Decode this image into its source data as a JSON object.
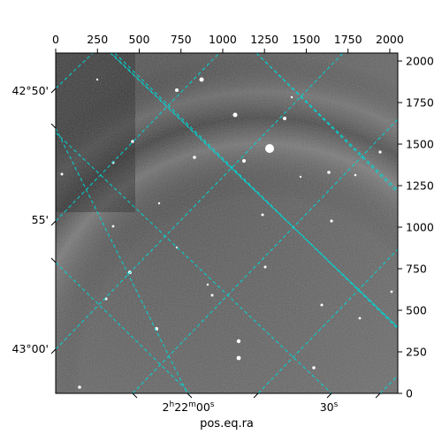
{
  "image": {
    "description_label": "astronomical image with celestial coordinate grid"
  },
  "axes": {
    "top_ticks": [
      "0",
      "250",
      "500",
      "750",
      "1000",
      "1250",
      "1500",
      "1750",
      "2000"
    ],
    "right_ticks": [
      "0",
      "250",
      "500",
      "750",
      "1000",
      "1250",
      "1500",
      "1750",
      "2000"
    ],
    "left_ticks": [
      "42°50'",
      "55'",
      "43°00'"
    ],
    "bottom_ticks": [
      {
        "main": "2",
        "sup1": "h",
        "mid": "22",
        "sup2": "m",
        "end": "00",
        "sup3": "s"
      },
      {
        "main": "30",
        "sup1": "s"
      }
    ],
    "xlabel": "pos.eq.ra"
  },
  "colors": {
    "grid": "#00d5d5",
    "frame": "#000000"
  }
}
